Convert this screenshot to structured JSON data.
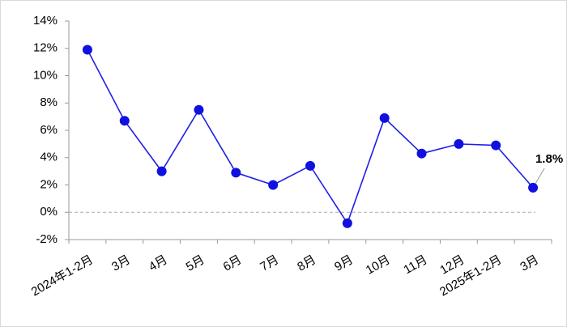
{
  "chart_data": {
    "type": "line",
    "categories": [
      "2024年1-2月",
      "3月",
      "4月",
      "5月",
      "6月",
      "7月",
      "8月",
      "9月",
      "10月",
      "11月",
      "12月",
      "2025年1-2月",
      "3月"
    ],
    "values": [
      11.9,
      6.7,
      3.0,
      7.5,
      2.9,
      2.0,
      3.4,
      -0.8,
      6.9,
      4.3,
      5.0,
      4.9,
      1.8
    ],
    "value_labels": [
      null,
      null,
      null,
      null,
      null,
      null,
      null,
      null,
      null,
      null,
      null,
      null,
      "1.8%"
    ],
    "color": "#1f1fe6",
    "marker_color": "#1010e0",
    "ylim": [
      -2,
      14
    ],
    "yticks": [
      {
        "value": -2,
        "label": "-2%"
      },
      {
        "value": 0,
        "label": "0%"
      },
      {
        "value": 2,
        "label": "2%"
      },
      {
        "value": 4,
        "label": "4%"
      },
      {
        "value": 6,
        "label": "6%"
      },
      {
        "value": 8,
        "label": "8%"
      },
      {
        "value": 10,
        "label": "10%"
      },
      {
        "value": 12,
        "label": "12%"
      },
      {
        "value": 14,
        "label": "14%"
      }
    ],
    "zero_line": true
  }
}
